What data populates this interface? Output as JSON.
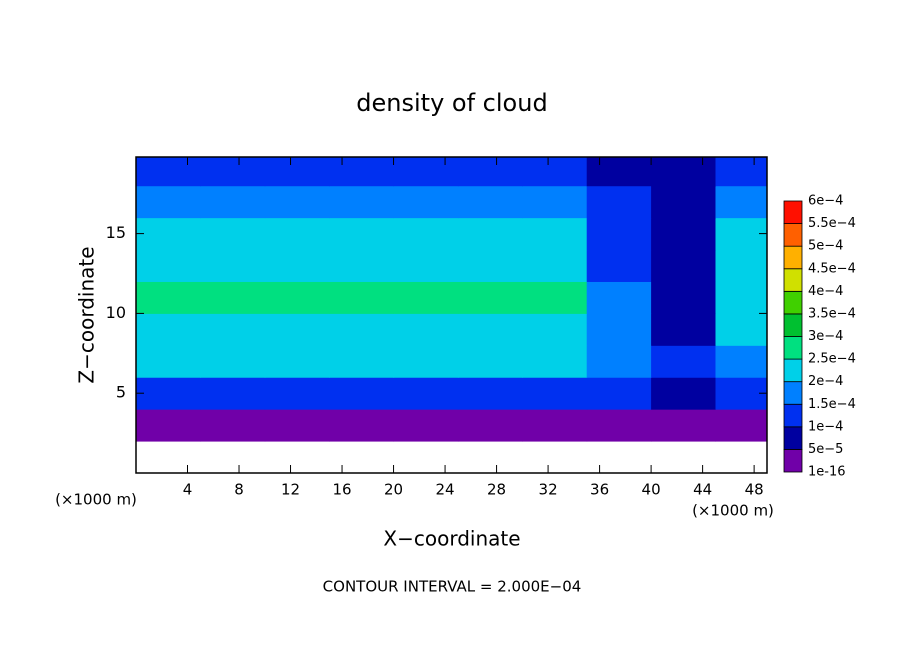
{
  "chart_data": {
    "type": "contour",
    "title": "density of cloud",
    "xlabel": "X−coordinate",
    "ylabel": "Z−coordinate",
    "x_unit_label": "(×1000 m)",
    "y_unit_label": "(×1000 m)",
    "annotation": "CONTOUR INTERVAL = 2.000E−04",
    "xlim": [
      0,
      49
    ],
    "ylim": [
      0,
      19.8
    ],
    "xticks": [
      4,
      8,
      12,
      16,
      20,
      24,
      28,
      32,
      36,
      40,
      44,
      48
    ],
    "yticks": [
      5,
      10,
      15
    ],
    "field": {
      "x": [
        2.5,
        7.5,
        12.5,
        17.5,
        22.5,
        27.5,
        32.5,
        37.5,
        42.5,
        47.5
      ],
      "z": [
        1,
        3,
        5,
        7,
        9,
        11,
        13,
        15,
        17,
        19
      ],
      "values": [
        [
          null,
          null,
          null,
          null,
          null,
          null,
          null,
          null,
          null,
          null
        ],
        [
          1e-05,
          1e-05,
          1e-05,
          1e-05,
          1e-05,
          1e-05,
          1e-05,
          1e-05,
          1e-05,
          1e-05
        ],
        [
          0.00012,
          0.00012,
          0.00012,
          0.00011,
          0.00011,
          0.00011,
          0.00011,
          0.0001,
          8e-05,
          0.00012
        ],
        [
          0.00021,
          0.00021,
          0.00021,
          0.00021,
          0.00021,
          0.00021,
          0.00021,
          0.00018,
          0.0001,
          0.00018
        ],
        [
          0.00024,
          0.00024,
          0.00024,
          0.00024,
          0.00024,
          0.00024,
          0.00024,
          0.00016,
          9e-05,
          0.00022
        ],
        [
          0.00025,
          0.00025,
          0.00025,
          0.00025,
          0.00025,
          0.00025,
          0.00025,
          0.00015,
          8e-05,
          0.00024
        ],
        [
          0.00024,
          0.00024,
          0.00024,
          0.00024,
          0.00024,
          0.00024,
          0.00024,
          0.00014,
          8e-05,
          0.00023
        ],
        [
          0.00021,
          0.00022,
          0.00022,
          0.00022,
          0.00022,
          0.00022,
          0.00022,
          0.00012,
          8e-05,
          0.0002
        ],
        [
          0.00017,
          0.00018,
          0.00018,
          0.00018,
          0.00018,
          0.00018,
          0.00018,
          0.0001,
          6e-05,
          0.00016
        ],
        [
          0.0001,
          0.0001,
          0.0001,
          0.0001,
          0.0001,
          0.0001,
          0.0001,
          8e-05,
          6e-05,
          0.0001
        ]
      ]
    },
    "colorbar": {
      "levels": [
        1e-16,
        {
          "value": 5e-05,
          "label": "5e−5"
        },
        {
          "value": 0.0001,
          "label": "1e−4"
        },
        {
          "value": 0.00015,
          "label": "1.5e−4"
        },
        {
          "value": 0.0002,
          "label": "2e−4"
        },
        {
          "value": 0.00025,
          "label": "2.5e−4"
        },
        {
          "value": 0.0003,
          "label": "3e−4"
        },
        {
          "value": 0.00035,
          "label": "3.5e−4"
        },
        {
          "value": 0.0004,
          "label": "4e−4"
        },
        {
          "value": 0.00045,
          "label": "4.5e−4"
        },
        {
          "value": 0.0005,
          "label": "5e−4"
        },
        {
          "value": 0.00055,
          "label": "5.5e−4"
        },
        {
          "value": 0.0006,
          "label": "6e−4"
        }
      ],
      "colors": [
        "#7000a8",
        "#0000a0",
        "#0030f0",
        "#0080ff",
        "#00d0e8",
        "#00e080",
        "#00c030",
        "#40d000",
        "#d0e000",
        "#ffb000",
        "#ff6000",
        "#ff1000",
        "#ff8888"
      ]
    }
  }
}
